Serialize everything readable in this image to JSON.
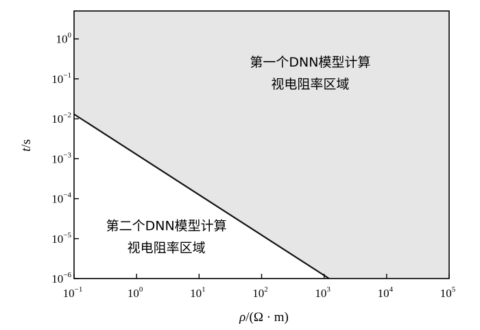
{
  "chart_data": {
    "type": "area",
    "x_scale": "log",
    "y_scale": "log",
    "xlim": [
      0.1,
      100000
    ],
    "ylim": [
      1e-06,
      5
    ],
    "xlabel": {
      "symbol": "ρ",
      "unit": "/(Ω · m)"
    },
    "ylabel": {
      "symbol": "t",
      "unit": "/s"
    },
    "x_ticks": [
      {
        "base": "10",
        "exp": "−1",
        "value": 0.1
      },
      {
        "base": "10",
        "exp": "0",
        "value": 1
      },
      {
        "base": "10",
        "exp": "1",
        "value": 10
      },
      {
        "base": "10",
        "exp": "2",
        "value": 100
      },
      {
        "base": "10",
        "exp": "3",
        "value": 1000
      },
      {
        "base": "10",
        "exp": "4",
        "value": 10000
      },
      {
        "base": "10",
        "exp": "5",
        "value": 100000
      }
    ],
    "y_ticks": [
      {
        "base": "10",
        "exp": "−6",
        "value": 1e-06
      },
      {
        "base": "10",
        "exp": "−5",
        "value": 1e-05
      },
      {
        "base": "10",
        "exp": "−4",
        "value": 0.0001
      },
      {
        "base": "10",
        "exp": "−3",
        "value": 0.001
      },
      {
        "base": "10",
        "exp": "−2",
        "value": 0.01
      },
      {
        "base": "10",
        "exp": "−1",
        "value": 0.1
      },
      {
        "base": "10",
        "exp": "0",
        "value": 1
      }
    ],
    "boundary": {
      "x": [
        0.1,
        1200
      ],
      "y": [
        0.013,
        1e-06
      ]
    },
    "regions": [
      {
        "name": "upper",
        "fill": "#e6e6e6",
        "lines": [
          "第一个DNN模型计算",
          "视电阻率区域"
        ],
        "anchor": {
          "x": 600,
          "y": 0.1
        }
      },
      {
        "name": "lower",
        "fill": "#ffffff",
        "lines": [
          "第二个DNN模型计算",
          "视电阻率区域"
        ],
        "anchor": {
          "x": 3,
          "y": 8e-06
        }
      }
    ],
    "grid": false
  }
}
